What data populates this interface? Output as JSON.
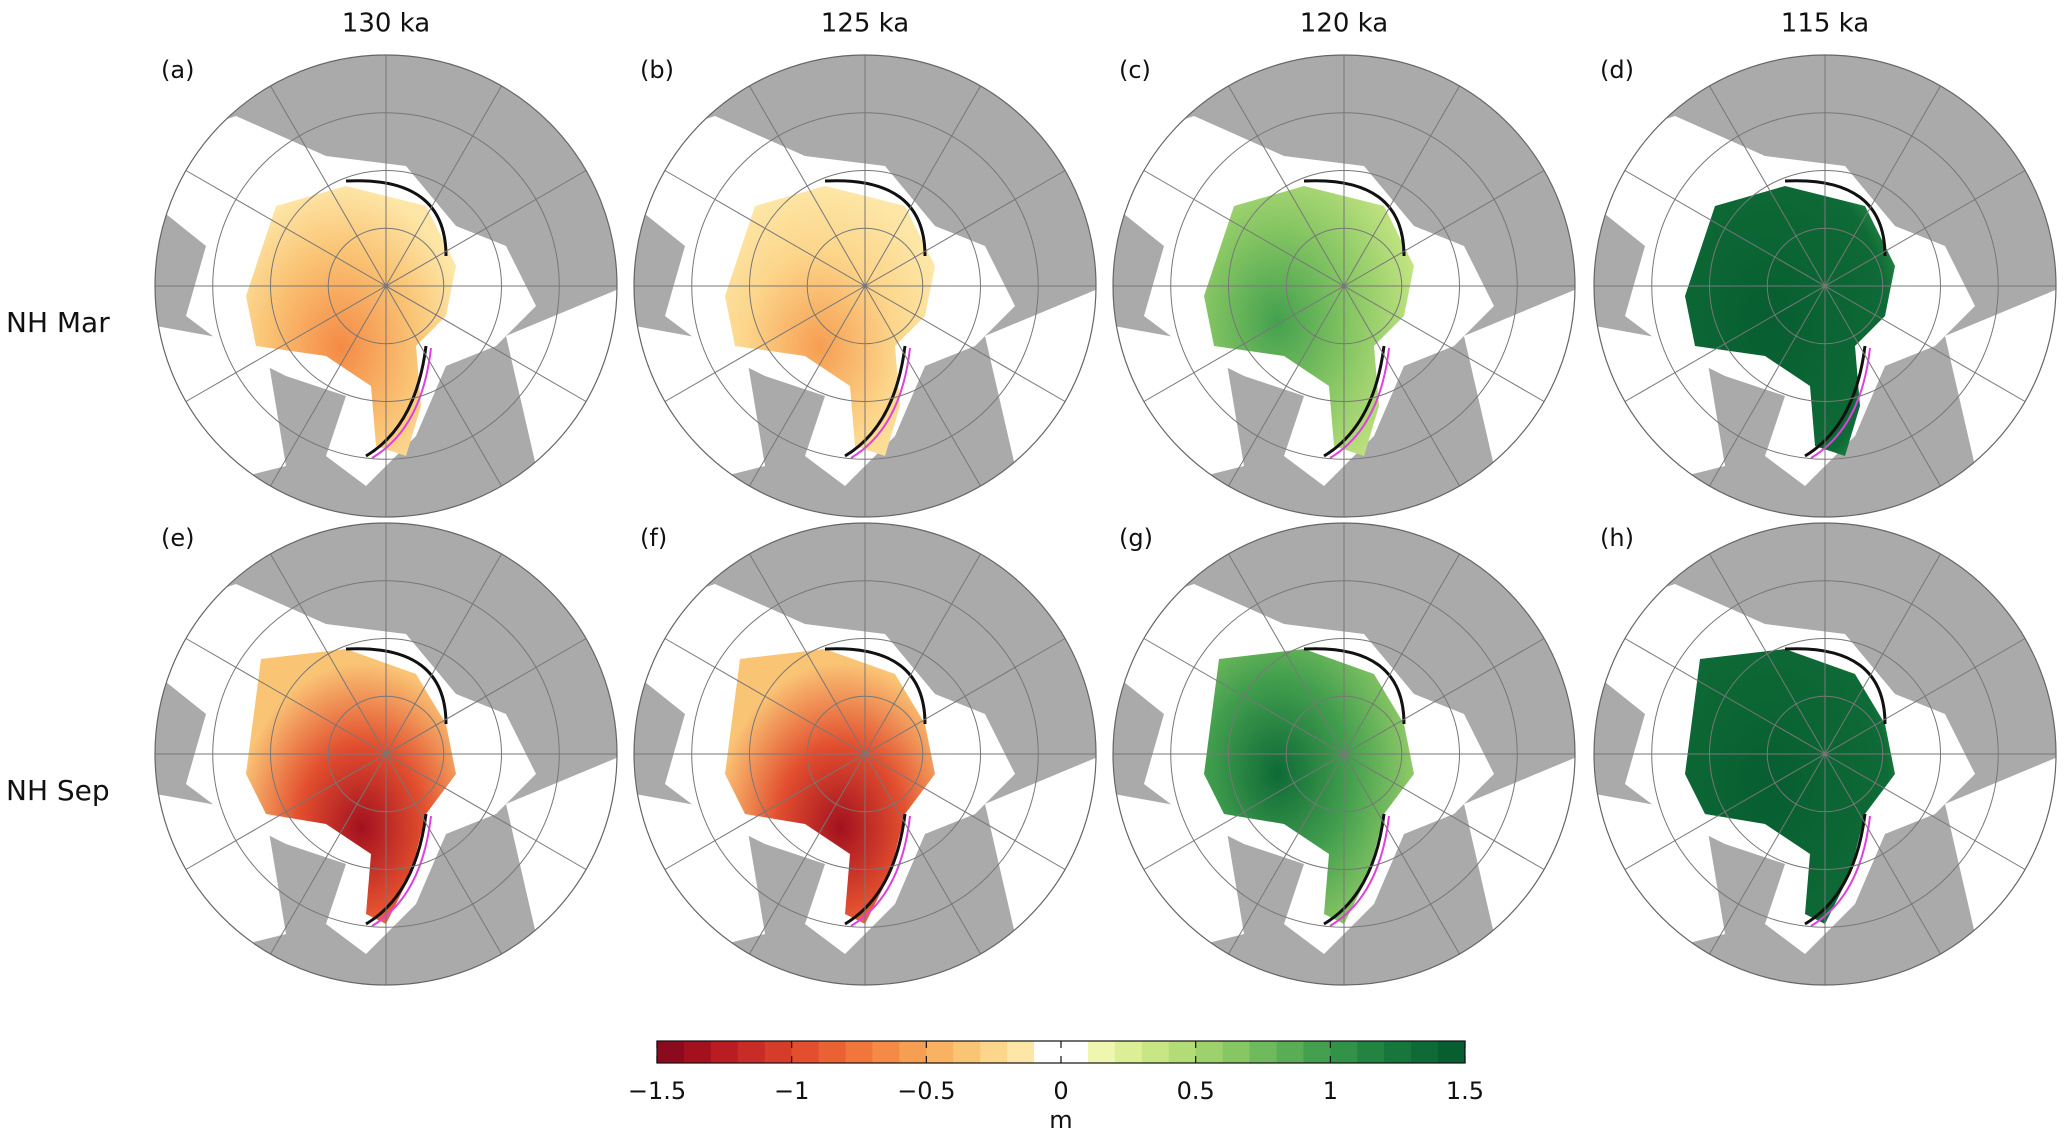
{
  "columns": [
    "130  ka",
    "125  ka",
    "120  ka",
    "115  ka"
  ],
  "rows": [
    "NH Mar",
    "NH Sep"
  ],
  "panels": [
    "(a)",
    "(b)",
    "(c)",
    "(d)",
    "(e)",
    "(f)",
    "(g)",
    "(h)"
  ],
  "colorbar": {
    "lim": [
      -1.5,
      1.5
    ],
    "ticks": [
      {
        "value": -1.5,
        "label": "−1.5"
      },
      {
        "value": -1,
        "label": "−1"
      },
      {
        "value": -0.5,
        "label": "−0.5"
      },
      0,
      0.5,
      1,
      1.5
    ],
    "colors": [
      "#8b0a1e",
      "#a3111f",
      "#b91c22",
      "#c92b26",
      "#d63c2a",
      "#e24e2e",
      "#ea6234",
      "#f0763c",
      "#f48a46",
      "#f69e52",
      "#f8b262",
      "#fac475",
      "#fcd68b",
      "#fde6a6",
      "#ffffff",
      "#ffffff",
      "#eef6b0",
      "#dcef96",
      "#c8e684",
      "#b3dc76",
      "#9dd16c",
      "#86c663",
      "#6fba5c",
      "#59ad55",
      "#44a04e",
      "#329248",
      "#238441",
      "#17763b",
      "#0e6a36",
      "#075e31"
    ],
    "label": "m"
  }
}
